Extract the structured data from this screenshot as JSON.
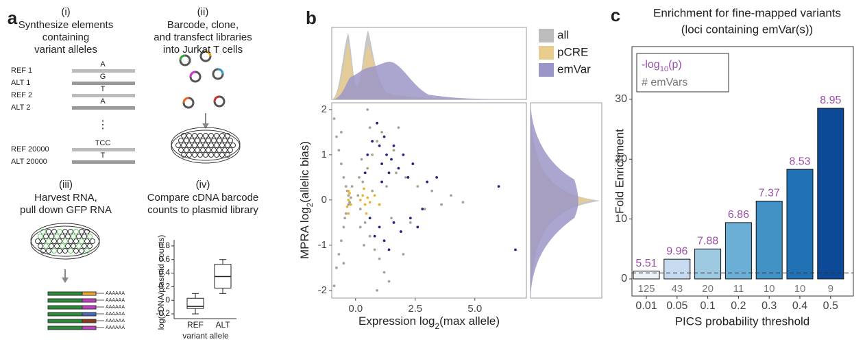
{
  "diagram": {
    "panel": "a",
    "step1": {
      "num": "(i)",
      "lines": [
        "Synthesize elements",
        "containing",
        "variant alleles"
      ]
    },
    "alleles": [
      {
        "name": "REF 1",
        "base": "A"
      },
      {
        "name": "ALT 1",
        "base": "G"
      },
      {
        "name": "REF 2",
        "base": "T"
      },
      {
        "name": "ALT 2",
        "base": "A"
      },
      {
        "name": "REF 20000",
        "base": "TCC"
      },
      {
        "name": "ALT 20000",
        "base": "T"
      }
    ],
    "ellipsis": "⋮",
    "step2": {
      "num": "(ii)",
      "lines": [
        "Barcode, clone,",
        "and transfect libraries",
        "into Jurkat T cells"
      ]
    },
    "step3": {
      "num": "(iii)",
      "lines": [
        "Harvest RNA,",
        "pull down GFP RNA"
      ]
    },
    "polya": [
      "AAAAAA",
      "AAAAAA",
      "AAAAAA",
      "AAAAAA",
      "AAAAAA",
      "AAAAAA"
    ],
    "step4": {
      "num": "(iv)",
      "lines": [
        "Compare cDNA barcode",
        "counts to plasmid library"
      ]
    }
  },
  "chart_data": [
    {
      "type": "box",
      "ylabel": "log(cDNA/plasmid counts)",
      "xlabel": "variant allele",
      "categories": [
        "REF",
        "ALT"
      ],
      "whisker_low": [
        -0.2,
        0.1
      ],
      "q1": [
        -0.12,
        0.18
      ],
      "median": [
        -0.09,
        0.35
      ],
      "q3": [
        0.03,
        0.53
      ],
      "whisker_high": [
        0.1,
        0.6
      ],
      "ylim": [
        -0.27,
        0.89
      ],
      "yticks": [
        -0.2,
        0,
        0.2,
        0.4,
        0.6,
        0.8
      ]
    },
    {
      "type": "scatter",
      "panel": "b",
      "xlabel": {
        "prefix": "Expression log",
        "sub": "2",
        "suffix": "(max allele)"
      },
      "ylabel": {
        "prefix": "MPRA log",
        "sub": "2",
        "suffix": "(allelic bias)"
      },
      "xlim": [
        -1,
        7.16
      ],
      "ylim": [
        -2.17,
        2.15
      ],
      "xticks": [
        {
          "value": 0,
          "label": "0.0"
        },
        2.5,
        {
          "value": 5,
          "label": "5.0"
        }
      ],
      "yticks": [
        -2,
        -1,
        0,
        1,
        2
      ],
      "legend": "right",
      "series": [
        {
          "name": "all",
          "color": "#a9a394",
          "density_color": "#bdbdbd",
          "x": [
            -0.9,
            -0.8,
            -0.7,
            -0.6,
            -0.5,
            -0.4,
            -0.3,
            -0.3,
            -0.4,
            -0.5,
            -0.6,
            -0.7,
            -0.8,
            -0.9,
            -0.2,
            -0.25,
            -0.35,
            -0.45,
            0.1,
            0.2,
            0.3,
            0.4,
            0.5,
            0.6,
            0.7,
            0.8,
            0.9,
            1.0,
            1.1,
            1.2,
            1.3,
            1.5,
            1.7,
            1.9,
            2.1,
            2.3,
            2.6,
            2.9,
            3.2,
            3.6,
            4.0,
            4.5,
            0.25,
            0.35,
            0.15,
            0.2,
            1.4,
            0.9,
            -0.6,
            -0.5,
            0.5,
            1.6,
            2.0,
            0.7,
            1.0,
            -0.15,
            0.6,
            1.8
          ],
          "y": [
            1.8,
            1.4,
            1.1,
            0.8,
            0.5,
            0.3,
            0.1,
            -0.1,
            -0.3,
            -0.6,
            -0.9,
            -1.2,
            -1.5,
            -1.9,
            0.05,
            -0.05,
            0.2,
            -0.4,
            0.1,
            -0.2,
            0.4,
            -0.5,
            0.7,
            -0.8,
            1.0,
            -1.1,
            1.3,
            -1.3,
            1.5,
            -1.6,
            0.3,
            -0.4,
            0.6,
            -0.7,
            0.5,
            -0.5,
            0.3,
            -0.2,
            0.2,
            -0.1,
            0.1,
            -0.05,
            0.9,
            -1.0,
            0.5,
            -0.6,
            -1.8,
            -2.0,
            1.5,
            -1.4,
            2.0,
            1.1,
            -1.2,
            0.2,
            -0.1,
            0.3,
            1.6,
            1.6
          ]
        },
        {
          "name": "pCRE",
          "color": "#e8b43a",
          "density_color": "#e9cd8f",
          "x": [
            -0.3,
            -0.25,
            -0.35,
            -0.2,
            -0.3,
            0.2,
            0.3,
            0.4,
            0.5,
            0.6,
            0.35,
            0.45,
            0.8,
            1.0,
            -0.3
          ],
          "y": [
            0,
            0.15,
            -0.15,
            -0.1,
            0.2,
            0,
            0.1,
            -0.1,
            0.05,
            -0.05,
            0.25,
            -0.3,
            0.1,
            -0.1,
            -0.3
          ]
        },
        {
          "name": "emVar",
          "color": "#262680",
          "density_color": "#9b96c8",
          "x": [
            0.5,
            0.7,
            0.9,
            1.0,
            1.1,
            1.2,
            1.3,
            1.4,
            1.5,
            1.6,
            1.8,
            2.0,
            2.2,
            2.4,
            1.0,
            1.2,
            1.4,
            0.8,
            1.6,
            1.9,
            2.3,
            2.6,
            3.0,
            3.4,
            6.0,
            6.7,
            0.6,
            1.1,
            0.4,
            2.8
          ],
          "y": [
            1.0,
            1.3,
            1.7,
            1.2,
            0.8,
            1.4,
            1.0,
            0.6,
            0.9,
            1.2,
            0.7,
            1.0,
            0.5,
            0.8,
            -0.6,
            -0.9,
            -1.1,
            -0.8,
            -0.5,
            -0.7,
            -0.4,
            -0.6,
            0.4,
            0.5,
            0.3,
            -1.1,
            -0.4,
            0.4,
            0.6,
            -0.2
          ]
        }
      ]
    },
    {
      "type": "bar",
      "panel": "c",
      "title": [
        "Enrichment for fine-mapped variants",
        "(loci containing emVar(s))"
      ],
      "ylabel": "Fold Enrichment",
      "xlabel": "PICS probability threshold",
      "categories": [
        "0.01",
        "0.05",
        "0.1",
        "0.2",
        "0.3",
        "0.4",
        "0.5"
      ],
      "values": [
        1.3,
        3.3,
        5.0,
        9.4,
        13.0,
        18.3,
        28.5
      ],
      "colors": [
        "#eef3fa",
        "#c6dbef",
        "#9ecae1",
        "#6baed6",
        "#4292c6",
        "#2171b5",
        "#0c4a97"
      ],
      "neg_log10_p": [
        5.51,
        9.96,
        7.88,
        6.86,
        7.37,
        8.53,
        8.95
      ],
      "emvar_counts": [
        125,
        43,
        20,
        11,
        10,
        10,
        9
      ],
      "ylim": [
        -2.86,
        38.8
      ],
      "yticks": [
        0,
        10,
        20,
        30
      ],
      "reference_line": 1,
      "legend": {
        "p": {
          "prefix": "-log",
          "sub": "10",
          "suffix": "(p)"
        },
        "count": "# emVars"
      },
      "p_color": "#9b4fa8",
      "count_color": "#777777"
    }
  ]
}
